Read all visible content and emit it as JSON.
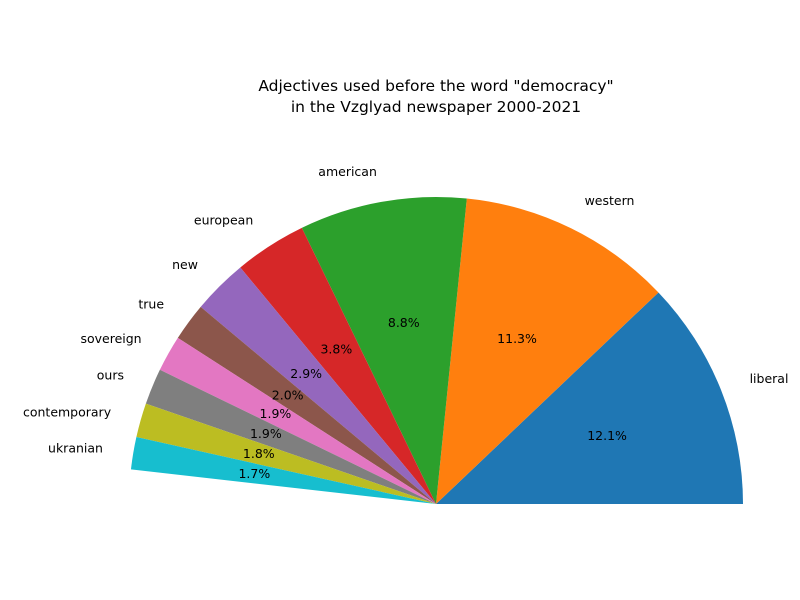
{
  "chart_data": {
    "type": "pie",
    "title": "Adjectives used before the word \"democracy\"\nin the Vzglyad newspaper 2000-2021",
    "title_lines": [
      "Adjectives used before the word \"democracy\"",
      "in the Vzglyad newspaper 2000-2021"
    ],
    "categories": [
      "liberal",
      "western",
      "american",
      "european",
      "new",
      "true",
      "sovereign",
      "ours",
      "contemporary",
      "ukranian"
    ],
    "values": [
      12.1,
      11.3,
      8.8,
      3.8,
      2.9,
      2.0,
      1.9,
      1.9,
      1.8,
      1.7
    ],
    "value_labels": [
      "12.1%",
      "11.3%",
      "8.8%",
      "3.8%",
      "2.9%",
      "2.0%",
      "1.9%",
      "1.9%",
      "1.8%",
      "1.7%"
    ],
    "colors": [
      "#1f77b4",
      "#ff7f0e",
      "#2ca02c",
      "#d62728",
      "#9467bd",
      "#8c564b",
      "#e377c2",
      "#7f7f7f",
      "#bcbd22",
      "#17becf"
    ],
    "start_angle_deg": 0,
    "direction": "counterclockwise",
    "legend": "none"
  }
}
